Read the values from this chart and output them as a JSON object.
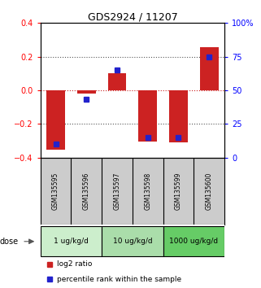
{
  "title": "GDS2924 / 11207",
  "samples": [
    "GSM135595",
    "GSM135596",
    "GSM135597",
    "GSM135598",
    "GSM135599",
    "GSM135600"
  ],
  "log2_ratio": [
    -0.355,
    -0.02,
    0.1,
    -0.305,
    -0.31,
    0.255
  ],
  "percentile_rank": [
    10,
    43,
    65,
    15,
    15,
    75
  ],
  "bar_color": "#cc2222",
  "dot_color": "#2222cc",
  "ylim_left": [
    -0.4,
    0.4
  ],
  "ylim_right": [
    0,
    100
  ],
  "yticks_left": [
    -0.4,
    -0.2,
    0.0,
    0.2,
    0.4
  ],
  "yticks_right": [
    0,
    25,
    50,
    75,
    100
  ],
  "ytick_labels_right": [
    "0",
    "25",
    "50",
    "75",
    "100%"
  ],
  "dose_groups": [
    {
      "label": "1 ug/kg/d",
      "samples": [
        0,
        1
      ],
      "color": "#cceecc"
    },
    {
      "label": "10 ug/kg/d",
      "samples": [
        2,
        3
      ],
      "color": "#aaddaa"
    },
    {
      "label": "1000 ug/kg/d",
      "samples": [
        4,
        5
      ],
      "color": "#66cc66"
    }
  ],
  "dose_label": "dose",
  "legend_bar_label": "log2 ratio",
  "legend_dot_label": "percentile rank within the sample",
  "bg_color": "#ffffff",
  "plot_bg_color": "#ffffff",
  "zero_line_color": "#cc2222",
  "dotted_line_color": "#555555",
  "sample_box_color": "#cccccc"
}
